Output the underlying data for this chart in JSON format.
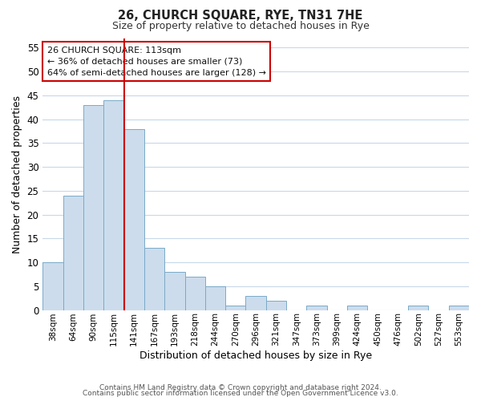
{
  "title": "26, CHURCH SQUARE, RYE, TN31 7HE",
  "subtitle": "Size of property relative to detached houses in Rye",
  "xlabel": "Distribution of detached houses by size in Rye",
  "ylabel": "Number of detached properties",
  "bar_color": "#ccdcec",
  "bar_edge_color": "#7aaac8",
  "categories": [
    "38sqm",
    "64sqm",
    "90sqm",
    "115sqm",
    "141sqm",
    "167sqm",
    "193sqm",
    "218sqm",
    "244sqm",
    "270sqm",
    "296sqm",
    "321sqm",
    "347sqm",
    "373sqm",
    "399sqm",
    "424sqm",
    "450sqm",
    "476sqm",
    "502sqm",
    "527sqm",
    "553sqm"
  ],
  "values": [
    10,
    24,
    43,
    44,
    38,
    13,
    8,
    7,
    5,
    1,
    3,
    2,
    0,
    1,
    0,
    1,
    0,
    0,
    1,
    0,
    1
  ],
  "ylim": [
    0,
    57
  ],
  "yticks": [
    0,
    5,
    10,
    15,
    20,
    25,
    30,
    35,
    40,
    45,
    50,
    55
  ],
  "vline_index": 3,
  "vline_color": "#cc0000",
  "annotation_line1": "26 CHURCH SQUARE: 113sqm",
  "annotation_line2": "← 36% of detached houses are smaller (73)",
  "annotation_line3": "64% of semi-detached houses are larger (128) →",
  "footer_line1": "Contains HM Land Registry data © Crown copyright and database right 2024.",
  "footer_line2": "Contains public sector information licensed under the Open Government Licence v3.0.",
  "background_color": "#ffffff",
  "grid_color": "#c8d8e8"
}
